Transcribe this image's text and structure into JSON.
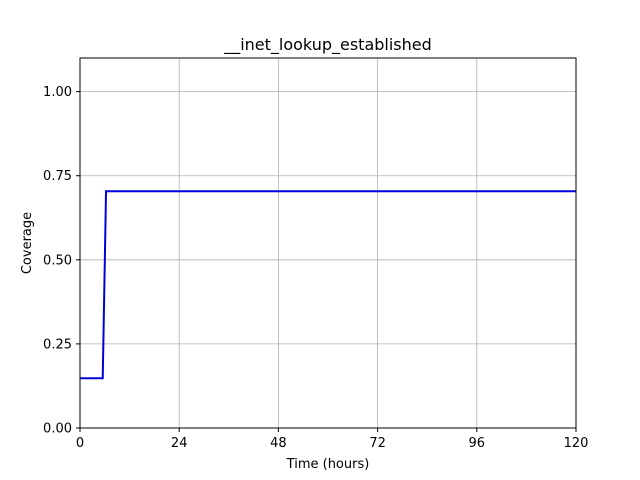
{
  "chart_data": {
    "type": "line",
    "title": "__inet_lookup_established",
    "xlabel": "Time (hours)",
    "ylabel": "Coverage",
    "xlim": [
      0,
      120
    ],
    "ylim": [
      0,
      1.1
    ],
    "xticks": [
      0,
      24,
      48,
      72,
      96,
      120
    ],
    "xtick_labels": [
      "0",
      "24",
      "48",
      "72",
      "96",
      "120"
    ],
    "yticks": [
      0,
      0.25,
      0.5,
      0.75,
      1.0
    ],
    "ytick_labels": [
      "0.00",
      "0.25",
      "0.50",
      "0.75",
      "1.00"
    ],
    "grid": true,
    "series": [
      {
        "color": "#0000dd",
        "x": [
          0,
          5.5,
          6.3,
          120
        ],
        "y": [
          0.148,
          0.148,
          0.704,
          0.704
        ]
      }
    ]
  }
}
